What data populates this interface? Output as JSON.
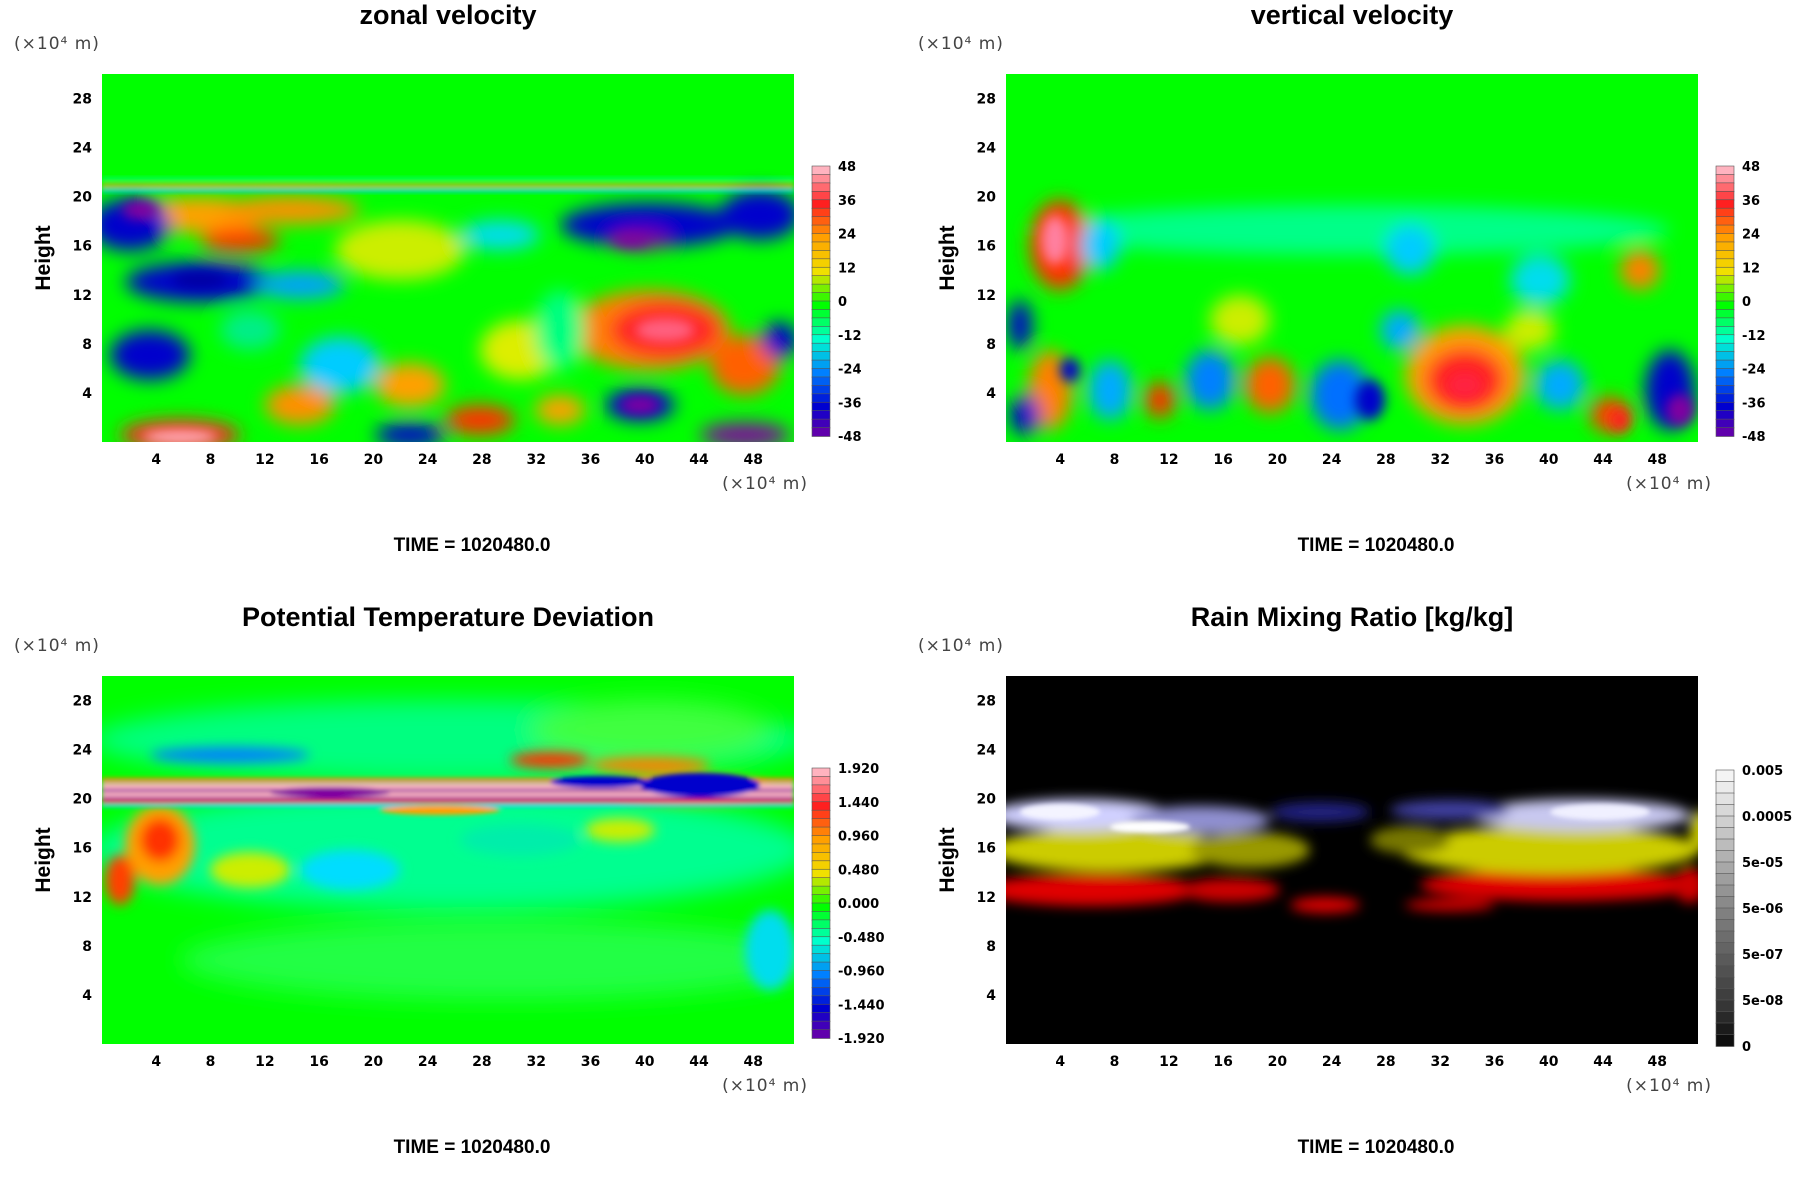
{
  "chart_data": [
    {
      "type": "heatmap",
      "title": "zonal velocity",
      "ylabel": "Height",
      "x_unit": "(×10⁴ m)",
      "y_unit": "(×10⁴ m)",
      "x_ticks": [
        "4",
        "8",
        "12",
        "16",
        "20",
        "24",
        "28",
        "32",
        "36",
        "40",
        "44",
        "48"
      ],
      "y_ticks": [
        "4",
        "8",
        "12",
        "16",
        "20",
        "24",
        "28"
      ],
      "xlim": [
        0,
        51
      ],
      "ylim": [
        0,
        30
      ],
      "colorbar": [
        "48",
        "36",
        "24",
        "12",
        "0",
        "-12",
        "-24",
        "-36",
        "-48"
      ],
      "colors": [
        "#ffb3bf",
        "#ff2020",
        "#ffa000",
        "#f0e000",
        "#00ff00",
        "#00ffcc",
        "#0080ff",
        "#0000d0",
        "#8000a0"
      ],
      "time_label": "TIME = 1020480.0"
    },
    {
      "type": "heatmap",
      "title": "vertical velocity",
      "ylabel": "Height",
      "x_unit": "(×10⁴ m)",
      "y_unit": "(×10⁴ m)",
      "x_ticks": [
        "4",
        "8",
        "12",
        "16",
        "20",
        "24",
        "28",
        "32",
        "36",
        "40",
        "44",
        "48"
      ],
      "y_ticks": [
        "4",
        "8",
        "12",
        "16",
        "20",
        "24",
        "28"
      ],
      "xlim": [
        0,
        51
      ],
      "ylim": [
        0,
        30
      ],
      "colorbar": [
        "48",
        "36",
        "24",
        "12",
        "0",
        "-12",
        "-24",
        "-36",
        "-48"
      ],
      "colors": [
        "#ffb3bf",
        "#ff2020",
        "#ffa000",
        "#f0e000",
        "#00ff00",
        "#00ffcc",
        "#0080ff",
        "#0000d0",
        "#8000a0"
      ],
      "time_label": "TIME = 1020480.0"
    },
    {
      "type": "heatmap",
      "title": "Potential Temperature Deviation",
      "ylabel": "Height",
      "x_unit": "(×10⁴ m)",
      "y_unit": "(×10⁴ m)",
      "x_ticks": [
        "4",
        "8",
        "12",
        "16",
        "20",
        "24",
        "28",
        "32",
        "36",
        "40",
        "44",
        "48"
      ],
      "y_ticks": [
        "4",
        "8",
        "12",
        "16",
        "20",
        "24",
        "28"
      ],
      "xlim": [
        0,
        51
      ],
      "ylim": [
        0,
        30
      ],
      "colorbar": [
        "1.920",
        "1.440",
        "0.960",
        "0.480",
        "0.000",
        "-0.480",
        "-0.960",
        "-1.440",
        "-1.920"
      ],
      "colors": [
        "#ffb3bf",
        "#ff2020",
        "#ffa000",
        "#f0e000",
        "#00ff00",
        "#00ffcc",
        "#0080ff",
        "#0000d0",
        "#8000a0"
      ],
      "time_label": "TIME = 1020480.0"
    },
    {
      "type": "heatmap",
      "title": "Rain Mixing Ratio [kg/kg]",
      "ylabel": "Height",
      "x_unit": "(×10⁴ m)",
      "y_unit": "(×10⁴ m)",
      "x_ticks": [
        "4",
        "8",
        "12",
        "16",
        "20",
        "24",
        "28",
        "32",
        "36",
        "40",
        "44",
        "48"
      ],
      "y_ticks": [
        "4",
        "8",
        "12",
        "16",
        "20",
        "24",
        "28"
      ],
      "xlim": [
        0,
        51
      ],
      "ylim": [
        0,
        30
      ],
      "colorbar": [
        "0.005",
        "0.0005",
        "5e-05",
        "5e-06",
        "5e-07",
        "5e-08",
        "0"
      ],
      "colors": [
        "#f4f4f4",
        "#cfcfcf",
        "#a8a8a8",
        "#808080",
        "#5a5a5a",
        "#363636",
        "#000000"
      ],
      "time_label": "TIME = 1020480.0"
    }
  ]
}
